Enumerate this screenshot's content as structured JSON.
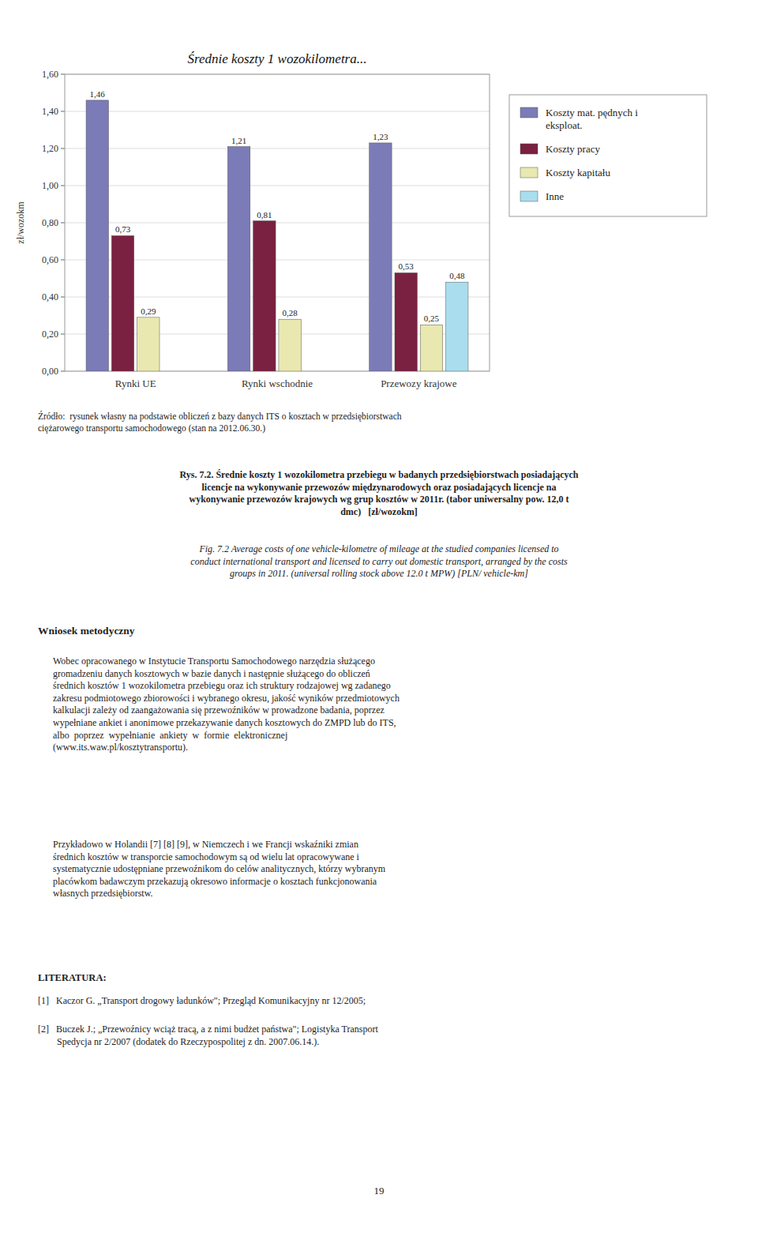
{
  "chart_data": {
    "type": "bar",
    "title": "Średnie koszty 1 wozokilometra...",
    "y_label": "zł/wozokm",
    "categories": [
      "Rynki UE",
      "Rynki wschodnie",
      "Przewozy krajowe"
    ],
    "series": [
      {
        "name": "Koszty mat. pędnych i\neksploat.",
        "color": "#7b7bb8",
        "values": [
          1.46,
          1.21,
          1.23
        ],
        "value_labels": [
          "1,46",
          "1,21",
          "1,23"
        ]
      },
      {
        "name": "Koszty pracy",
        "color": "#7a2040",
        "values": [
          0.73,
          0.81,
          0.53
        ],
        "value_labels": [
          "0,73",
          "0,81",
          "0,53"
        ]
      },
      {
        "name": "Koszty kapitału",
        "color": "#e8e8b0",
        "values": [
          0.29,
          0.28,
          0.25
        ],
        "value_labels": [
          "0,29",
          "0,28",
          "0,25"
        ]
      },
      {
        "name": "Inne",
        "color": "#aaddee",
        "values": [
          null,
          null,
          0.48
        ],
        "value_labels": [
          null,
          null,
          "0,48"
        ]
      }
    ],
    "ylim": [
      0.0,
      1.6
    ],
    "yticks": [
      {
        "value": 0.0,
        "label": "0,00"
      },
      {
        "value": 0.2,
        "label": "0,20"
      },
      {
        "value": 0.4,
        "label": "0,40"
      },
      {
        "value": 0.6,
        "label": "0,60"
      },
      {
        "value": 0.8,
        "label": "0,80"
      },
      {
        "value": 1.0,
        "label": "1,00"
      },
      {
        "value": 1.2,
        "label": "1,20"
      },
      {
        "value": 1.4,
        "label": "1,40"
      },
      {
        "value": 1.6,
        "label": "1,60"
      }
    ],
    "grid": true,
    "legend": "right",
    "data_labels": true
  },
  "source_line": "Źródło:  rysunek własny na podstawie obliczeń z bazy danych ITS o kosztach w przedsiębiorstwach\nciężarowego transportu samochodowego (stan na 2012.06.30.)",
  "caption_pl": "Rys. 7.2. Średnie koszty 1 wozokilometra przebiegu w badanych przedsiębiorstwach posiadających\nlicencje na wykonywanie przewozów międzynarodowych oraz posiadających licencje na\nwykonywanie przewozów krajowych wg grup kosztów w 2011r. (tabor uniwersalny pow. 12,0 t\ndmc)   [zł/wozokm]",
  "caption_en": "Fig. 7.2 Average costs of one vehicle-kilometre of mileage at the studied companies licensed to\nconduct international transport and licensed to carry out domestic transport, arranged by the costs\ngroups in 2011. (universal rolling stock above 12.0 t MPW) [PLN/ vehicle-km]",
  "section_header": "Wniosek metodyczny",
  "para1": "Wobec opracowanego w Instytucie Transportu Samochodowego narzędzia służącego\ngromadzeniu danych kosztowych w bazie danych i następnie służącego do obliczeń\nśrednich kosztów 1 wozokilometra przebiegu oraz ich struktury rodzajowej wg zadanego\nzakresu podmiotowego zbiorowości i wybranego okresu, jakość wyników przedmiotowych\nkalkulacji zależy od zaangażowania się przewoźników w prowadzone badania, poprzez\nwypełniane ankiet i anonimowe przekazywanie danych kosztowych do ZMPD lub do ITS,\nalbo  poprzez  wypełnianie  ankiety  w  formie  elektronicznej\n(www.its.waw.pl/kosztytransportu).",
  "para2": "Przykładowo w Holandii [7] [8] [9], w Niemczech i we Francji wskaźniki zmian\nśrednich kosztów w transporcie samochodowym są od wielu lat opracowywane i\nsystematycznie udostępniane przewoźnikom do celów analitycznych, którzy wybranym\nplacówkom badawczym przekazują okresowo informacje o kosztach funkcjonowania\nwłasnych przedsiębiorstw.",
  "literatura_header": "LITERATURA:",
  "ref1": "[1]   Kaczor G. „Transport drogowy ładunków\"; Przegląd Komunikacyjny nr 12/2005;",
  "ref2": "[2]   Buczek J.; „Przewoźnicy wciąż tracą, a z nimi budżet państwa\"; Logistyka Transport\n        Spedycja nr 2/2007 (dodatek do Rzeczypospolitej z dn. 2007.06.14.).",
  "page_number": "19"
}
